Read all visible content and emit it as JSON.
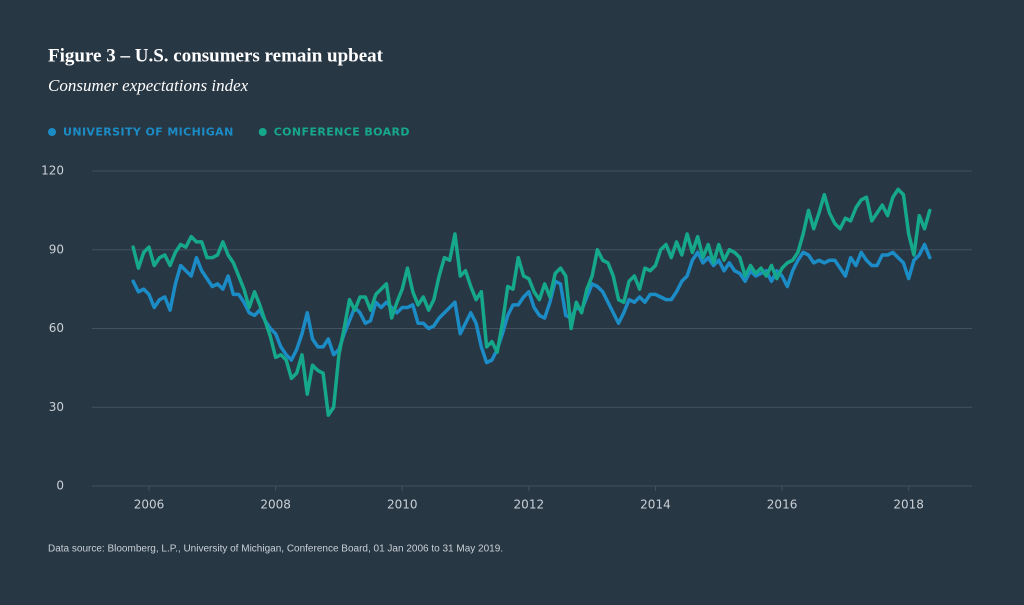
{
  "chart_data": {
    "type": "line",
    "title": "Figure 3 – U.S. consumers remain upbeat",
    "subtitle": "Consumer expectations index",
    "note": "Data source: Bloomberg, L.P., University of Michigan, Conference Board, 01 Jan 2006 to 31 May 2019.",
    "xlim": [
      2005.1,
      2019.0
    ],
    "xticks": [
      2006,
      2008,
      2010,
      2012,
      2014,
      2016,
      2018
    ],
    "ylim": [
      0,
      120
    ],
    "yticks": [
      0,
      30,
      60,
      90,
      120
    ],
    "grid": true,
    "legend": "top-left",
    "x": [
      2005.75,
      2005.833,
      2005.917,
      2006,
      2006.083,
      2006.167,
      2006.25,
      2006.333,
      2006.417,
      2006.5,
      2006.583,
      2006.667,
      2006.75,
      2006.833,
      2006.917,
      2007,
      2007.083,
      2007.167,
      2007.25,
      2007.333,
      2007.417,
      2007.5,
      2007.583,
      2007.667,
      2007.75,
      2007.833,
      2007.917,
      2008,
      2008.083,
      2008.167,
      2008.25,
      2008.333,
      2008.417,
      2008.5,
      2008.583,
      2008.667,
      2008.75,
      2008.833,
      2008.917,
      2009,
      2009.083,
      2009.167,
      2009.25,
      2009.333,
      2009.417,
      2009.5,
      2009.583,
      2009.667,
      2009.75,
      2009.833,
      2009.917,
      2010,
      2010.083,
      2010.167,
      2010.25,
      2010.333,
      2010.417,
      2010.5,
      2010.583,
      2010.667,
      2010.75,
      2010.833,
      2010.917,
      2011,
      2011.083,
      2011.167,
      2011.25,
      2011.333,
      2011.417,
      2011.5,
      2011.583,
      2011.667,
      2011.75,
      2011.833,
      2011.917,
      2012,
      2012.083,
      2012.167,
      2012.25,
      2012.333,
      2012.417,
      2012.5,
      2012.583,
      2012.667,
      2012.75,
      2012.833,
      2012.917,
      2013,
      2013.083,
      2013.167,
      2013.25,
      2013.333,
      2013.417,
      2013.5,
      2013.583,
      2013.667,
      2013.75,
      2013.833,
      2013.917,
      2014,
      2014.083,
      2014.167,
      2014.25,
      2014.333,
      2014.417,
      2014.5,
      2014.583,
      2014.667,
      2014.75,
      2014.833,
      2014.917,
      2015,
      2015.083,
      2015.167,
      2015.25,
      2015.333,
      2015.417,
      2015.5,
      2015.583,
      2015.667,
      2015.75,
      2015.833,
      2015.917,
      2016,
      2016.083,
      2016.167,
      2016.25,
      2016.333,
      2016.417,
      2016.5,
      2016.583,
      2016.667,
      2016.75,
      2016.833,
      2016.917,
      2017,
      2017.083,
      2017.167,
      2017.25,
      2017.333,
      2017.417,
      2017.5,
      2017.583,
      2017.667,
      2017.75,
      2017.833,
      2017.917,
      2018,
      2018.083,
      2018.167,
      2018.25,
      2018.333
    ],
    "series": [
      {
        "name": "UNIVERSITY OF MICHIGAN",
        "color": "#1b8cc6",
        "values": [
          78,
          74,
          75,
          73,
          68,
          71,
          72,
          67,
          77,
          84,
          82,
          80,
          87,
          82,
          79,
          76,
          77,
          75,
          80,
          73,
          73,
          70,
          66,
          65,
          67,
          63,
          60,
          58,
          53,
          50,
          48,
          52,
          58,
          66,
          56,
          53,
          53,
          56,
          50,
          52,
          58,
          63,
          68,
          66,
          62,
          63,
          70,
          68,
          70,
          68,
          66,
          68,
          68,
          69,
          62,
          62,
          60,
          61,
          64,
          66,
          68,
          70,
          58,
          62,
          66,
          62,
          53,
          47,
          48,
          52,
          58,
          65,
          69,
          69,
          72,
          74,
          68,
          65,
          64,
          70,
          78,
          77,
          65,
          64,
          68,
          67,
          72,
          77,
          76,
          74,
          70,
          66,
          62,
          66,
          71,
          70,
          72,
          70,
          73,
          73,
          72,
          71,
          71,
          74,
          78,
          80,
          86,
          89,
          85,
          87,
          84,
          86,
          82,
          85,
          82,
          81,
          78,
          82,
          80,
          81,
          82,
          78,
          82,
          80,
          76,
          82,
          86,
          89,
          88,
          85,
          86,
          85,
          86,
          86,
          83,
          80,
          87,
          84,
          89,
          86,
          84,
          84,
          88,
          88,
          89,
          87,
          85,
          79,
          86,
          88,
          92,
          87
        ]
      },
      {
        "name": "CONFERENCE BOARD",
        "color": "#16a88b",
        "values": [
          91,
          83,
          89,
          91,
          84,
          87,
          88,
          84,
          89,
          92,
          91,
          95,
          93,
          93,
          87,
          87,
          88,
          93,
          88,
          85,
          80,
          75,
          68,
          74,
          69,
          63,
          57,
          49,
          50,
          48,
          41,
          43,
          50,
          35,
          46,
          44,
          43,
          27,
          30,
          50,
          60,
          71,
          67,
          72,
          72,
          67,
          73,
          75,
          77,
          64,
          70,
          75,
          83,
          74,
          69,
          72,
          67,
          71,
          80,
          87,
          86,
          96,
          80,
          82,
          76,
          71,
          74,
          53,
          55,
          51,
          62,
          76,
          75,
          87,
          80,
          79,
          74,
          71,
          77,
          72,
          81,
          83,
          80,
          60,
          70,
          66,
          75,
          80,
          90,
          86,
          85,
          80,
          71,
          70,
          78,
          80,
          75,
          83,
          82,
          84,
          90,
          92,
          87,
          93,
          88,
          96,
          89,
          95,
          87,
          92,
          85,
          92,
          86,
          90,
          89,
          87,
          80,
          84,
          81,
          83,
          80,
          84,
          79,
          83,
          85,
          86,
          89,
          96,
          105,
          98,
          104,
          111,
          104,
          100,
          98,
          102,
          101,
          106,
          109,
          110,
          101,
          104,
          107,
          103,
          110,
          113,
          111,
          96,
          88,
          103,
          98,
          105
        ]
      }
    ]
  }
}
